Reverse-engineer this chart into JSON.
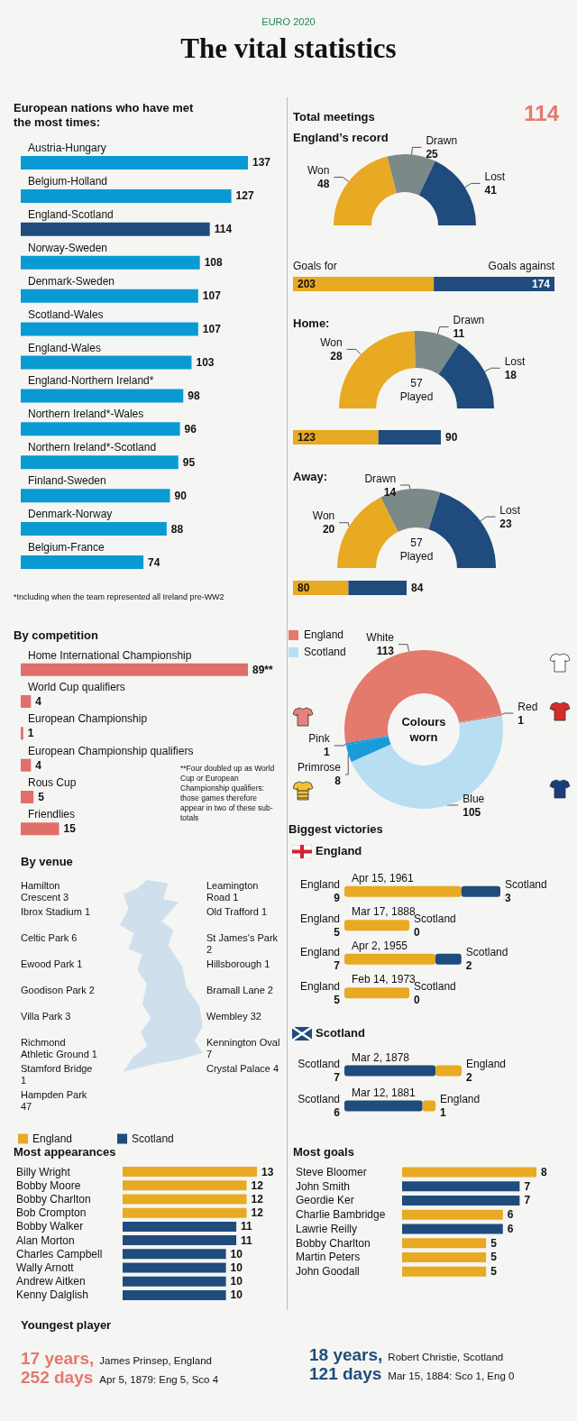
{
  "chart_data": [
    {
      "type": "other",
      "title": "The vital statistics",
      "subtitle": "EURO 2020"
    },
    {
      "type": "bar",
      "title": "European nations who have met the most times:",
      "orientation": "horizontal",
      "categories": [
        "Austria-Hungary",
        "Belgium-Holland",
        "England-Scotland",
        "Norway-Sweden",
        "Denmark-Sweden",
        "Scotland-Wales",
        "England-Wales",
        "England-Northern Ireland*",
        "Northern Ireland*-Wales",
        "Northern Ireland*-Scotland",
        "Finland-Sweden",
        "Denmark-Norway",
        "Belgium-France"
      ],
      "values": [
        137,
        127,
        114,
        108,
        107,
        107,
        103,
        98,
        96,
        95,
        90,
        88,
        74
      ],
      "colors": [
        "#0a9ad3",
        "#0a9ad3",
        "#1f4b7d",
        "#0a9ad3",
        "#0a9ad3",
        "#0a9ad3",
        "#0a9ad3",
        "#0a9ad3",
        "#0a9ad3",
        "#0a9ad3",
        "#0a9ad3",
        "#0a9ad3",
        "#0a9ad3"
      ],
      "data_labels": true,
      "annotations": [
        "*Including when the team represented all Ireland pre-WW2"
      ]
    },
    {
      "type": "other",
      "title": "Total meetings",
      "annotations": [
        "114"
      ]
    },
    {
      "type": "donut",
      "title": "England’s record",
      "categories": [
        "Won",
        "Drawn",
        "Lost"
      ],
      "values": [
        48,
        25,
        41
      ],
      "colors": [
        "#e8a923",
        "#7b8988",
        "#1f4b7d"
      ],
      "data_labels": true
    },
    {
      "type": "bar",
      "orientation": "horizontal",
      "stacked": true,
      "categories": [
        null
      ],
      "data_labels": true,
      "series": [
        {
          "name": "Goals for",
          "color": "#e8a923",
          "values": [
            203
          ]
        },
        {
          "name": "Goals against",
          "color": "#1f4b7d",
          "values": [
            174
          ]
        }
      ]
    },
    {
      "type": "donut",
      "title": "Home:",
      "categories": [
        "Won",
        "Drawn",
        "Lost"
      ],
      "values": [
        28,
        11,
        18
      ],
      "colors": [
        "#e8a923",
        "#7b8988",
        "#1f4b7d"
      ],
      "data_labels": true,
      "annotations": [
        "57 Played"
      ]
    },
    {
      "type": "bar",
      "orientation": "horizontal",
      "stacked": true,
      "categories": [
        null
      ],
      "data_labels": true,
      "series": [
        {
          "color": "#e8a923",
          "values": [
            123
          ]
        },
        {
          "color": "#1f4b7d",
          "values": [
            90
          ]
        }
      ]
    },
    {
      "type": "donut",
      "title": "Away:",
      "categories": [
        "Won",
        "Drawn",
        "Lost"
      ],
      "values": [
        20,
        14,
        23
      ],
      "colors": [
        "#e8a923",
        "#7b8988",
        "#1f4b7d"
      ],
      "data_labels": true,
      "annotations": [
        "57 Played"
      ]
    },
    {
      "type": "bar",
      "orientation": "horizontal",
      "stacked": true,
      "categories": [
        null
      ],
      "data_labels": true,
      "series": [
        {
          "color": "#e8a923",
          "values": [
            80
          ]
        },
        {
          "color": "#1f4b7d",
          "values": [
            84
          ]
        }
      ]
    },
    {
      "type": "bar",
      "title": "By competition",
      "orientation": "horizontal",
      "categories": [
        "Home International Championship",
        "World Cup qualifiers",
        "European Championship",
        "European Championship qualifiers",
        "Rous Cup",
        "Friendlies"
      ],
      "values": [
        89,
        4,
        1,
        4,
        5,
        15
      ],
      "value_labels": [
        "89**",
        "4",
        "1",
        "4",
        "5",
        "15"
      ],
      "color": "#e06e6a",
      "annotations": [
        "**Four doubled up as World Cup or European Championship qualifiers: those games therefore appear in two of these sub-totals"
      ]
    },
    {
      "type": "donut",
      "title": "Colours worn",
      "categories": [
        "White",
        "Red",
        "Blue",
        "Primrose",
        "Pink"
      ],
      "values": [
        113,
        1,
        105,
        8,
        1
      ],
      "colors": [
        "#e4796d",
        "#e4796d",
        "#b7def1",
        "#1a9ad6",
        "#1a9ad6"
      ],
      "data_labels": true,
      "annotations": [
        "England",
        "Scotland"
      ]
    },
    {
      "type": "bar",
      "title": "Biggest victories",
      "subtitle": "England",
      "orientation": "horizontal",
      "stacked": true,
      "categories": [
        "Apr 15, 1961",
        "Mar 17, 1888",
        "Apr 2, 1955",
        "Feb 14, 1973"
      ],
      "data_labels": true,
      "series": [
        {
          "name": "England",
          "color": "#e8a923",
          "values": [
            9,
            5,
            7,
            5
          ]
        },
        {
          "name": "Scotland",
          "color": "#1f4b7d",
          "values": [
            3,
            0,
            2,
            0
          ]
        }
      ]
    },
    {
      "type": "bar",
      "title": "Scotland",
      "orientation": "horizontal",
      "stacked": true,
      "categories": [
        "Mar 2, 1878",
        "Mar 12, 1881"
      ],
      "data_labels": true,
      "series": [
        {
          "name": "Scotland",
          "color": "#1f4b7d",
          "values": [
            7,
            6
          ]
        },
        {
          "name": "England",
          "color": "#e8a923",
          "values": [
            2,
            1
          ]
        }
      ]
    },
    {
      "type": "other",
      "title": "By venue",
      "categories": [
        "Hamilton Crescent 3",
        "Ibrox Stadium 1",
        "Celtic Park 6",
        "Ewood Park 1",
        "Goodison Park 2",
        "Villa Park 3",
        "Richmond Athletic Ground 1",
        "Stamford Bridge 1",
        "Hampden Park 47",
        "Leamington Road 1",
        "Old Trafford 1",
        "St James's Park 2",
        "Hillsborough 1",
        "Bramall Lane 2",
        "Wembley 32",
        "Kennington Oval 7",
        "Crystal Palace 4"
      ]
    },
    {
      "type": "bar",
      "title": "Most appearances",
      "orientation": "horizontal",
      "stacked": true,
      "legend": "top left",
      "data_labels": true,
      "categories": [
        "Billy Wright",
        "Bobby Moore",
        "Bobby Charlton",
        "Bob Crompton",
        "Bobby Walker",
        "Alan Morton",
        "Charles Campbell",
        "Wally Arnott",
        "Andrew Aitken",
        "Kenny Dalglish"
      ],
      "series": [
        {
          "name": "England",
          "color": "#e8a923",
          "values": [
            13,
            12,
            12,
            12,
            null,
            null,
            null,
            null,
            null,
            null
          ]
        },
        {
          "name": "Scotland",
          "color": "#1f4b7d",
          "values": [
            null,
            null,
            null,
            null,
            11,
            11,
            10,
            10,
            10,
            10
          ]
        }
      ]
    },
    {
      "type": "bar",
      "title": "Most goals",
      "orientation": "horizontal",
      "stacked": true,
      "data_labels": true,
      "categories": [
        "Steve Bloomer",
        "John Smith",
        "Geordie Ker",
        "Charlie Bambridge",
        "Lawrie Reilly",
        "Bobby Charlton",
        "Martin Peters",
        "John Goodall"
      ],
      "series": [
        {
          "color": "#e8a923",
          "values": [
            8,
            null,
            null,
            6,
            null,
            5,
            5,
            5
          ]
        },
        {
          "color": "#1f4b7d",
          "values": [
            null,
            7,
            7,
            null,
            6,
            null,
            null,
            null
          ]
        }
      ]
    },
    {
      "type": "other",
      "title": "Youngest player",
      "annotations": [
        "17 years,",
        "252 days",
        "James Prinsep, England",
        "Apr 5, 1879: Eng 5, Sco 4",
        "18 years,",
        "121 days",
        "Robert Christie, Scotland",
        "Mar 15, 1884: Sco 1, Eng 0"
      ]
    }
  ]
}
